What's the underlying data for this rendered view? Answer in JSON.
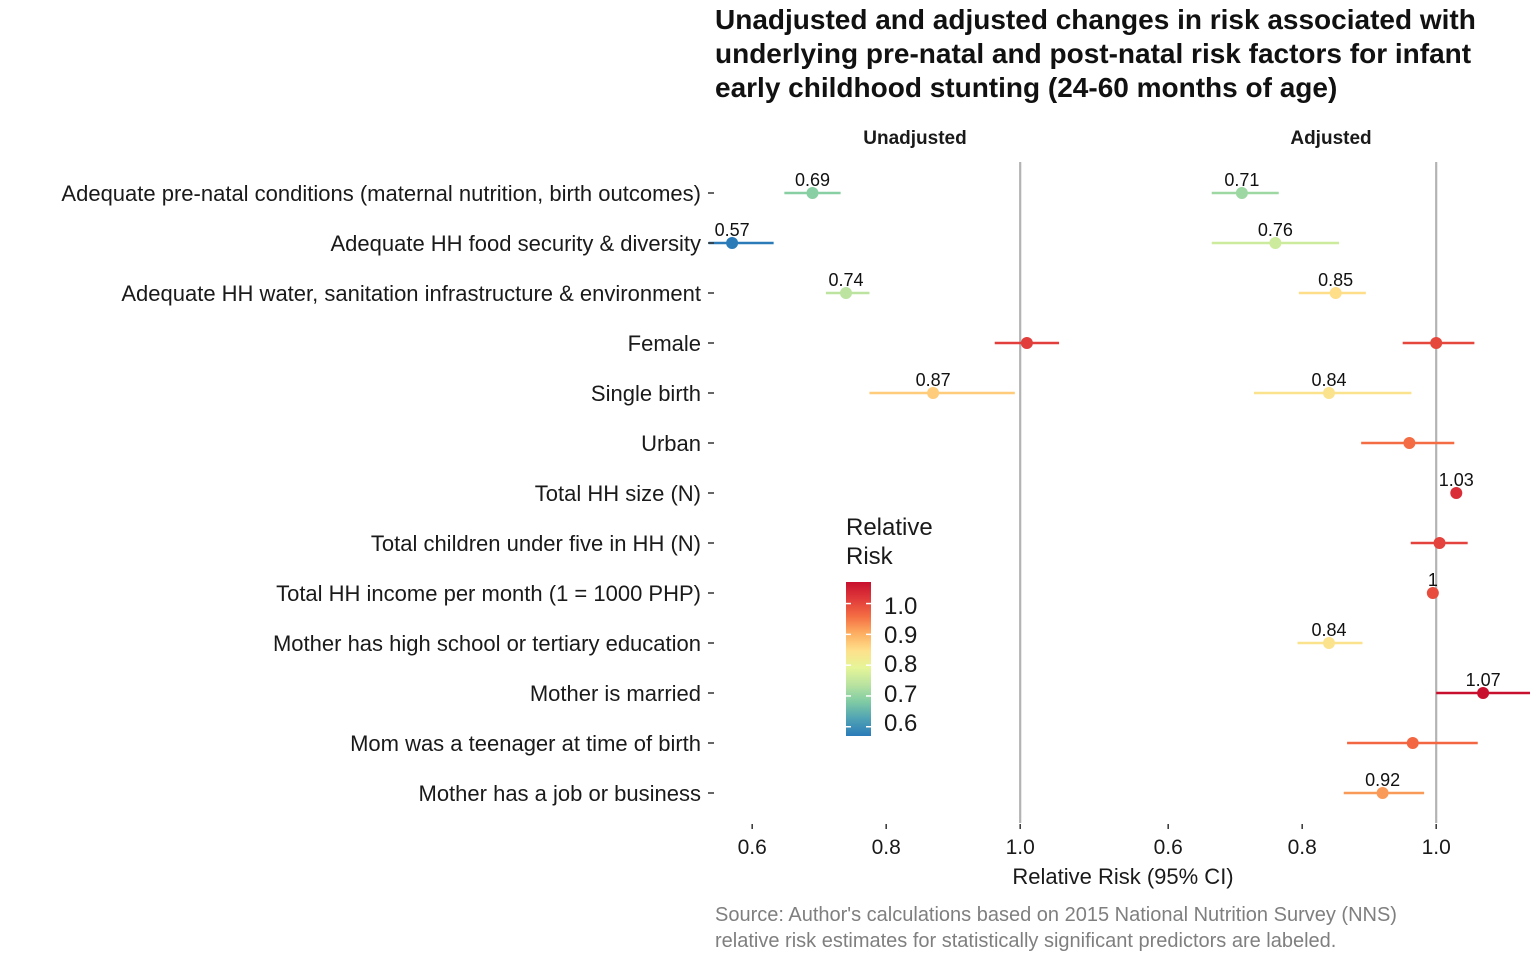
{
  "chart_data": {
    "type": "scatter",
    "title_lines": [
      "Unadjusted and adjusted changes in risk associated with",
      "underlying pre-natal and post-natal risk factors for infant",
      "early childhood stunting (24-60 months of age)"
    ],
    "xlabel": "Relative Risk (95% CI)",
    "caption_lines": [
      "Source: Author's calculations based on 2015 National Nutrition Survey (NNS)",
      "relative risk estimates for statistically significant predictors are labeled."
    ],
    "legend": {
      "title_lines": [
        "Relative",
        "Risk"
      ],
      "ticks": [
        "1.0",
        "0.9",
        "0.8",
        "0.7",
        "0.6"
      ],
      "tick_values": [
        1.0,
        0.9,
        0.8,
        0.7,
        0.6
      ],
      "range": [
        0.57,
        1.07
      ]
    },
    "color_scale": [
      "#2b7bb9",
      "#4fa2b4",
      "#7fcba4",
      "#b9e3a0",
      "#e6f598",
      "#fee08b",
      "#fdae61",
      "#f46d43",
      "#e03a3a",
      "#c8102e"
    ],
    "reference_line": 1.0,
    "xlim": [
      0.543,
      1.143
    ],
    "x_ticks": [
      "0.6",
      "0.8",
      "1.0"
    ],
    "x_tick_values": [
      0.6,
      0.8,
      1.0
    ],
    "categories": [
      "Adequate pre-natal conditions (maternal nutrition, birth outcomes)",
      "Adequate HH food security & diversity",
      "Adequate HH water, sanitation infrastructure & environment",
      "Female",
      "Single birth",
      "Urban",
      "Total HH size (N)",
      "Total children under five in HH (N)",
      "Total HH income per month (1 = 1000 PHP)",
      "Mother has high school or tertiary education",
      "Mother is married",
      "Mom was a teenager at time of birth",
      "Mother has a job or business"
    ],
    "panels": [
      {
        "name": "Unadjusted",
        "points": [
          {
            "rr": 0.69,
            "lo": 0.648,
            "hi": 0.732,
            "label": "0.69"
          },
          {
            "rr": 0.57,
            "lo": 0.535,
            "hi": 0.632,
            "label": "0.57"
          },
          {
            "rr": 0.74,
            "lo": 0.71,
            "hi": 0.775,
            "label": "0.74"
          },
          {
            "rr": 1.01,
            "lo": 0.962,
            "hi": 1.058,
            "label": ""
          },
          {
            "rr": 0.87,
            "lo": 0.775,
            "hi": 0.992,
            "label": "0.87"
          }
        ]
      },
      {
        "name": "Adjusted",
        "points": [
          {
            "rr": 0.71,
            "lo": 0.665,
            "hi": 0.765,
            "label": "0.71"
          },
          {
            "rr": 0.76,
            "lo": 0.665,
            "hi": 0.855,
            "label": "0.76"
          },
          {
            "rr": 0.85,
            "lo": 0.795,
            "hi": 0.895,
            "label": "0.85"
          },
          {
            "rr": 1.0,
            "lo": 0.95,
            "hi": 1.057,
            "label": ""
          },
          {
            "rr": 0.84,
            "lo": 0.728,
            "hi": 0.963,
            "label": "0.84"
          },
          {
            "rr": 0.96,
            "lo": 0.888,
            "hi": 1.027,
            "label": ""
          },
          {
            "rr": 1.03,
            "lo": 1.022,
            "hi": 1.038,
            "label": "1.03"
          },
          {
            "rr": 1.005,
            "lo": 0.962,
            "hi": 1.047,
            "label": ""
          },
          {
            "rr": 0.995,
            "lo": 0.992,
            "hi": 0.998,
            "label": "1"
          },
          {
            "rr": 0.84,
            "lo": 0.793,
            "hi": 0.89,
            "label": "0.84"
          },
          {
            "rr": 1.07,
            "lo": 1.0,
            "hi": 1.14,
            "label": "1.07"
          },
          {
            "rr": 0.965,
            "lo": 0.867,
            "hi": 1.062,
            "label": ""
          },
          {
            "rr": 0.92,
            "lo": 0.862,
            "hi": 0.982,
            "label": "0.92"
          }
        ]
      }
    ]
  }
}
